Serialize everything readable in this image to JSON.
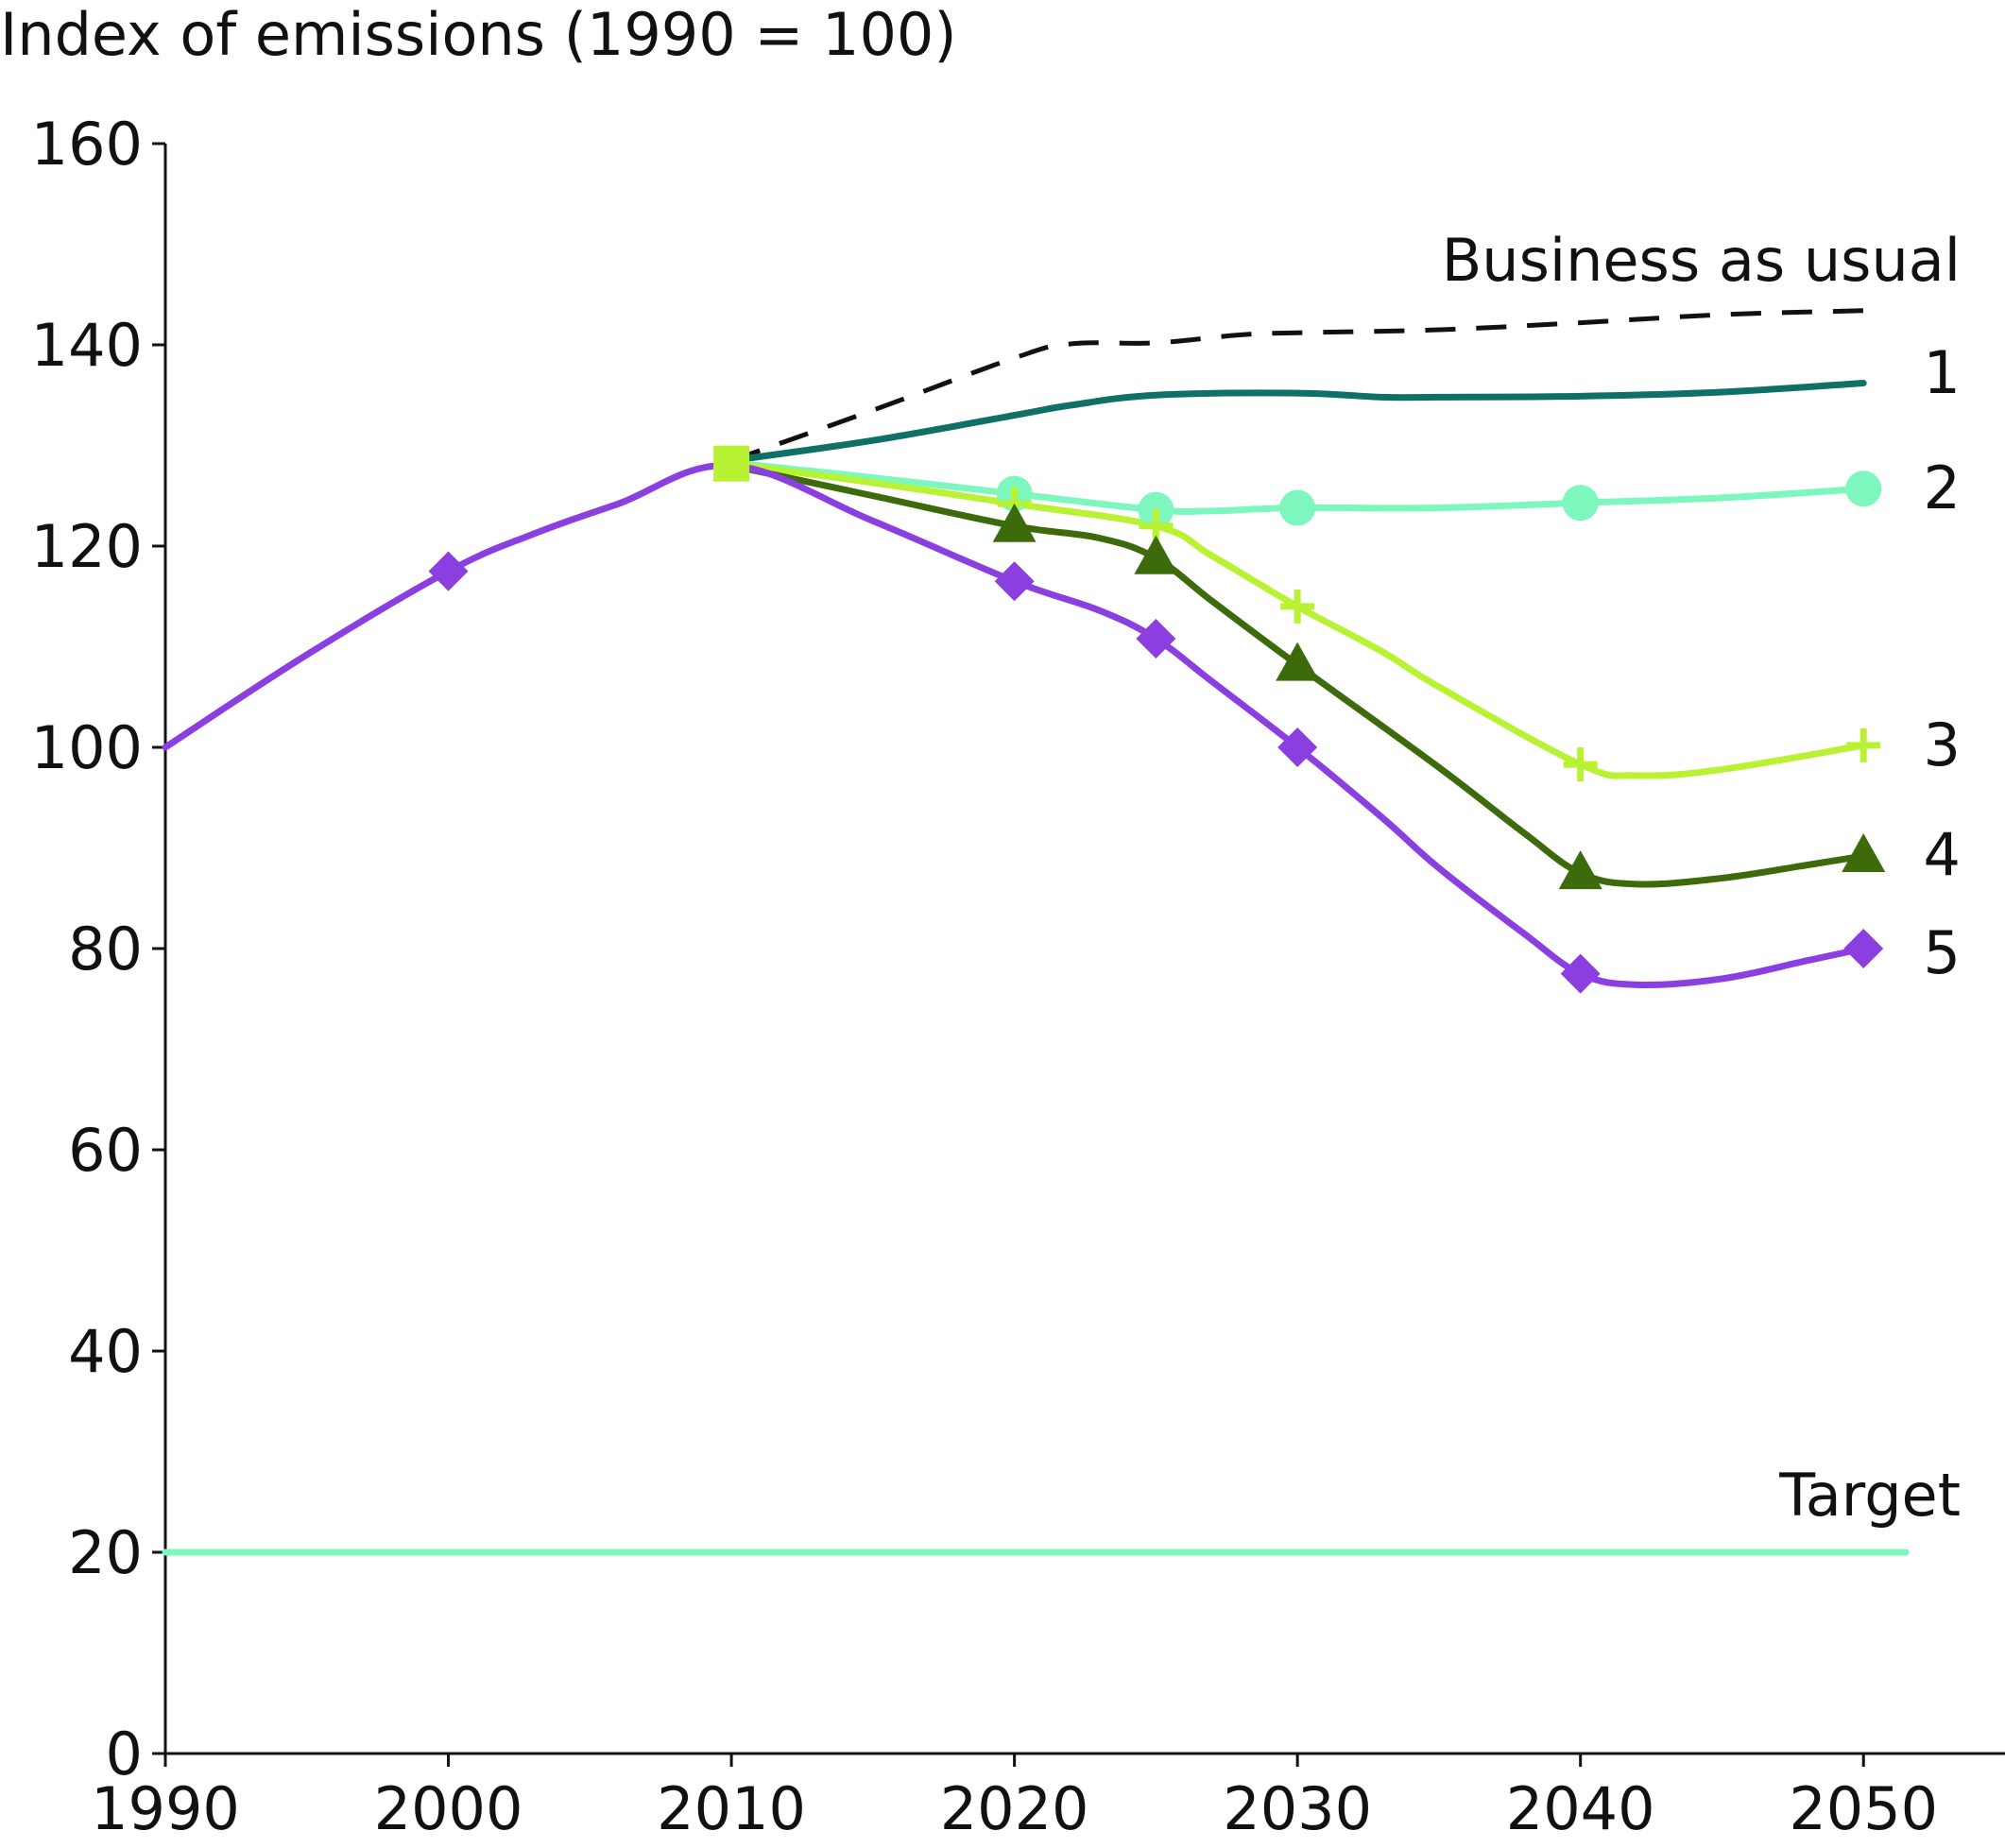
{
  "chart_data": {
    "type": "line",
    "ylabel": "Index of emissions (1990 = 100)",
    "xlim": [
      1990,
      2055
    ],
    "ylim": [
      0,
      160
    ],
    "x_ticks": [
      1990,
      2000,
      2010,
      2020,
      2030,
      2040,
      2050
    ],
    "y_ticks": [
      0,
      20,
      40,
      60,
      80,
      100,
      120,
      140,
      160
    ],
    "grid": false,
    "legend": "inline labels at right end of lines",
    "series": [
      {
        "name": "Business as usual",
        "color": "#111111",
        "style": "dashed",
        "marker": "none",
        "points": [
          [
            2010,
            128.5
          ],
          [
            2015,
            133.5
          ],
          [
            2020,
            138.7
          ],
          [
            2022,
            140.1
          ],
          [
            2025,
            140.2
          ],
          [
            2028,
            141.0
          ],
          [
            2030,
            141.2
          ],
          [
            2035,
            141.5
          ],
          [
            2040,
            142.2
          ],
          [
            2045,
            143.0
          ],
          [
            2050,
            143.4
          ]
        ]
      },
      {
        "name": "1",
        "color": "#0e7066",
        "style": "solid",
        "marker": "none",
        "points": [
          [
            2010,
            128.5
          ],
          [
            2015,
            130.5
          ],
          [
            2020,
            133.0
          ],
          [
            2022,
            134.0
          ],
          [
            2025,
            135.0
          ],
          [
            2030,
            135.2
          ],
          [
            2033,
            134.8
          ],
          [
            2035,
            134.8
          ],
          [
            2040,
            134.9
          ],
          [
            2045,
            135.3
          ],
          [
            2050,
            136.2
          ]
        ]
      },
      {
        "name": "2",
        "color": "#7df7bd",
        "style": "solid",
        "marker": "circle",
        "points": [
          [
            2010,
            128.3
          ],
          [
            2015,
            126.8
          ],
          [
            2020,
            125.2
          ],
          [
            2025,
            123.6
          ],
          [
            2027,
            123.5
          ],
          [
            2030,
            123.8
          ],
          [
            2035,
            123.8
          ],
          [
            2040,
            124.3
          ],
          [
            2045,
            124.8
          ],
          [
            2050,
            125.7
          ]
        ],
        "marker_x": [
          2020,
          2025,
          2030,
          2040,
          2050
        ]
      },
      {
        "name": "3",
        "color": "#b8f232",
        "style": "solid",
        "marker": "plus",
        "points": [
          [
            2010,
            128.2
          ],
          [
            2015,
            126.3
          ],
          [
            2020,
            124.2
          ],
          [
            2025,
            122.0
          ],
          [
            2027,
            119.0
          ],
          [
            2030,
            114.0
          ],
          [
            2033,
            109.5
          ],
          [
            2035,
            106.0
          ],
          [
            2040,
            98.3
          ],
          [
            2042,
            97.2
          ],
          [
            2045,
            97.8
          ],
          [
            2050,
            100.2
          ]
        ],
        "marker_x": [
          2010,
          2020,
          2025,
          2030,
          2040,
          2050
        ]
      },
      {
        "name": "4",
        "color": "#3d6b0c",
        "style": "solid",
        "marker": "triangle",
        "points": [
          [
            2010,
            128.0
          ],
          [
            2015,
            125.0
          ],
          [
            2020,
            122.0
          ],
          [
            2023,
            120.8
          ],
          [
            2025,
            118.8
          ],
          [
            2027,
            114.5
          ],
          [
            2030,
            108.2
          ],
          [
            2035,
            98.0
          ],
          [
            2038,
            91.5
          ],
          [
            2040,
            87.5
          ],
          [
            2042,
            86.4
          ],
          [
            2045,
            87.0
          ],
          [
            2048,
            88.3
          ],
          [
            2050,
            89.2
          ]
        ],
        "marker_x": [
          2020,
          2025,
          2030,
          2040,
          2050
        ]
      },
      {
        "name": "5",
        "color": "#8c3fe0",
        "style": "solid",
        "marker": "diamond",
        "points": [
          [
            1990,
            100.0
          ],
          [
            1995,
            109.2
          ],
          [
            2000,
            117.5
          ],
          [
            2003,
            121.2
          ],
          [
            2006,
            124.2
          ],
          [
            2010,
            128.0
          ],
          [
            2015,
            122.5
          ],
          [
            2020,
            116.5
          ],
          [
            2023,
            113.6
          ],
          [
            2025,
            110.8
          ],
          [
            2027,
            106.5
          ],
          [
            2030,
            100.0
          ],
          [
            2033,
            93.0
          ],
          [
            2035,
            88.0
          ],
          [
            2038,
            81.5
          ],
          [
            2040,
            77.5
          ],
          [
            2042,
            76.4
          ],
          [
            2045,
            77.0
          ],
          [
            2048,
            78.8
          ],
          [
            2050,
            80.0
          ]
        ],
        "marker_x": [
          2000,
          2020,
          2025,
          2030,
          2040,
          2050
        ]
      },
      {
        "name": "Target",
        "color": "#7df7bd",
        "style": "solid",
        "marker": "none",
        "points": [
          [
            1990,
            20.0
          ],
          [
            2051.5,
            20.0
          ]
        ]
      }
    ]
  }
}
